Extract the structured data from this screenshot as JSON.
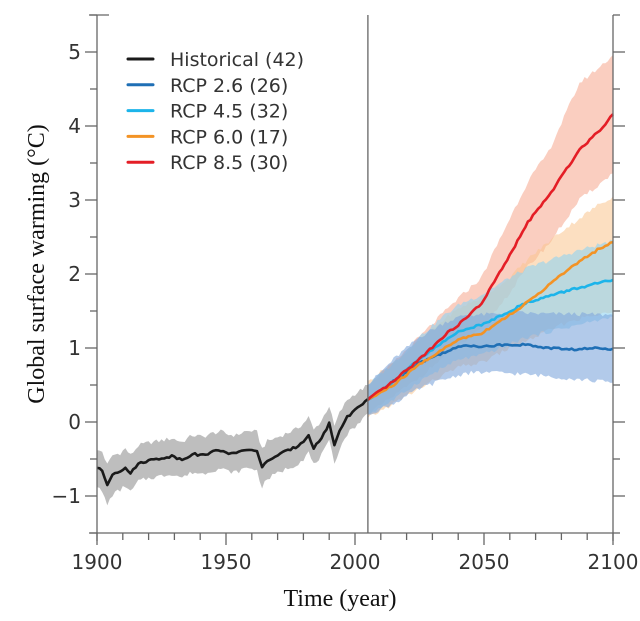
{
  "chart_data": {
    "type": "line",
    "title": "",
    "xlabel": "Time (year)",
    "ylabel": "Global surface warming (°C)",
    "xlim": [
      1900,
      2100
    ],
    "ylim": [
      -1.5,
      5.5
    ],
    "xticks": [
      1900,
      1950,
      2000,
      2050,
      2100
    ],
    "yticks": [
      -1,
      0,
      1,
      2,
      3,
      4,
      5
    ],
    "x_minor_step": 10,
    "y_minor_step": 0.5,
    "reference_line_x": 2005,
    "grid": false,
    "legend_position": "top-left",
    "series": [
      {
        "name": "Historical (42)",
        "color": "#1a1a1a",
        "band_color": "#b3b3b3",
        "band_opacity": 0.85,
        "x": [
          1900,
          1902,
          1904,
          1906,
          1909,
          1911,
          1913,
          1916,
          1920,
          1925,
          1929,
          1933,
          1937,
          1941,
          1945,
          1948,
          1951,
          1954,
          1957,
          1960,
          1962,
          1964,
          1966,
          1969,
          1973,
          1977,
          1980,
          1982,
          1984,
          1987,
          1990,
          1992,
          1994,
          1997,
          2000,
          2003,
          2005
        ],
        "y": [
          -0.62,
          -0.66,
          -0.85,
          -0.7,
          -0.66,
          -0.61,
          -0.7,
          -0.56,
          -0.52,
          -0.49,
          -0.46,
          -0.51,
          -0.43,
          -0.45,
          -0.4,
          -0.38,
          -0.42,
          -0.43,
          -0.38,
          -0.37,
          -0.4,
          -0.62,
          -0.52,
          -0.47,
          -0.4,
          -0.34,
          -0.26,
          -0.17,
          -0.35,
          -0.22,
          -0.02,
          -0.31,
          -0.12,
          0.07,
          0.16,
          0.25,
          0.31
        ],
        "lower": [
          -0.88,
          -0.95,
          -1.12,
          -0.98,
          -0.92,
          -0.86,
          -0.95,
          -0.8,
          -0.76,
          -0.73,
          -0.7,
          -0.75,
          -0.68,
          -0.7,
          -0.65,
          -0.63,
          -0.67,
          -0.68,
          -0.63,
          -0.62,
          -0.66,
          -0.88,
          -0.77,
          -0.71,
          -0.64,
          -0.58,
          -0.5,
          -0.41,
          -0.58,
          -0.45,
          -0.27,
          -0.56,
          -0.36,
          -0.16,
          -0.06,
          0.04,
          0.12
        ],
        "upper": [
          -0.38,
          -0.4,
          -0.58,
          -0.45,
          -0.42,
          -0.36,
          -0.45,
          -0.32,
          -0.28,
          -0.25,
          -0.22,
          -0.27,
          -0.18,
          -0.2,
          -0.15,
          -0.13,
          -0.17,
          -0.18,
          -0.13,
          -0.12,
          -0.14,
          -0.36,
          -0.26,
          -0.22,
          -0.16,
          -0.1,
          -0.02,
          0.07,
          -0.11,
          0.02,
          0.22,
          -0.06,
          0.12,
          0.3,
          0.38,
          0.45,
          0.5
        ]
      },
      {
        "name": "RCP 2.6 (26)",
        "color": "#1f6fb5",
        "band_color": "#7fa6dc",
        "band_opacity": 0.6,
        "x": [
          2005,
          2015,
          2025,
          2035,
          2043,
          2050,
          2060,
          2067,
          2075,
          2085,
          2095,
          2100
        ],
        "y": [
          0.3,
          0.55,
          0.8,
          0.95,
          1.04,
          1.02,
          1.05,
          1.04,
          1.0,
          0.98,
          1.0,
          0.99
        ],
        "lower": [
          0.1,
          0.25,
          0.45,
          0.58,
          0.66,
          0.67,
          0.66,
          0.64,
          0.62,
          0.58,
          0.55,
          0.53
        ],
        "upper": [
          0.5,
          0.85,
          1.15,
          1.35,
          1.45,
          1.45,
          1.48,
          1.47,
          1.46,
          1.46,
          1.45,
          1.45
        ]
      },
      {
        "name": "RCP 4.5 (32)",
        "color": "#1cb4ea",
        "band_color": "#8fd3f2",
        "band_opacity": 0.6,
        "x": [
          2005,
          2015,
          2025,
          2035,
          2041,
          2049,
          2060,
          2067,
          2075,
          2085,
          2095,
          2100
        ],
        "y": [
          0.3,
          0.55,
          0.85,
          1.1,
          1.24,
          1.31,
          1.5,
          1.62,
          1.7,
          1.8,
          1.88,
          1.92
        ],
        "lower": [
          0.1,
          0.3,
          0.55,
          0.75,
          0.85,
          0.9,
          1.05,
          1.15,
          1.22,
          1.3,
          1.38,
          1.42
        ],
        "upper": [
          0.5,
          0.8,
          1.15,
          1.45,
          1.6,
          1.72,
          1.95,
          2.08,
          2.18,
          2.3,
          2.4,
          2.45
        ]
      },
      {
        "name": "RCP 6.0 (17)",
        "color": "#f39325",
        "band_color": "#f9c48e",
        "band_opacity": 0.55,
        "x": [
          2005,
          2015,
          2025,
          2035,
          2041,
          2049,
          2060,
          2067,
          2079,
          2085,
          2095,
          2100
        ],
        "y": [
          0.3,
          0.5,
          0.78,
          1.0,
          1.13,
          1.2,
          1.45,
          1.62,
          1.96,
          2.12,
          2.35,
          2.43
        ],
        "lower": [
          0.05,
          0.25,
          0.45,
          0.65,
          0.75,
          0.8,
          1.0,
          1.1,
          1.3,
          1.38,
          1.45,
          1.48
        ],
        "upper": [
          0.55,
          0.8,
          1.1,
          1.4,
          1.55,
          1.68,
          1.95,
          2.2,
          2.55,
          2.7,
          2.95,
          3.05
        ]
      },
      {
        "name": "RCP 8.5 (30)",
        "color": "#e41e26",
        "band_color": "#f5a58c",
        "band_opacity": 0.55,
        "x": [
          2005,
          2015,
          2025,
          2035,
          2041,
          2049,
          2060,
          2067,
          2075,
          2087,
          2095,
          2100
        ],
        "y": [
          0.3,
          0.55,
          0.85,
          1.18,
          1.34,
          1.6,
          2.25,
          2.7,
          3.05,
          3.68,
          3.95,
          4.16
        ],
        "lower": [
          0.1,
          0.35,
          0.6,
          0.9,
          1.05,
          1.25,
          1.75,
          2.1,
          2.4,
          3.0,
          3.22,
          3.36
        ],
        "upper": [
          0.5,
          0.8,
          1.15,
          1.5,
          1.7,
          1.95,
          2.75,
          3.25,
          3.65,
          4.58,
          4.8,
          4.96
        ]
      }
    ]
  }
}
